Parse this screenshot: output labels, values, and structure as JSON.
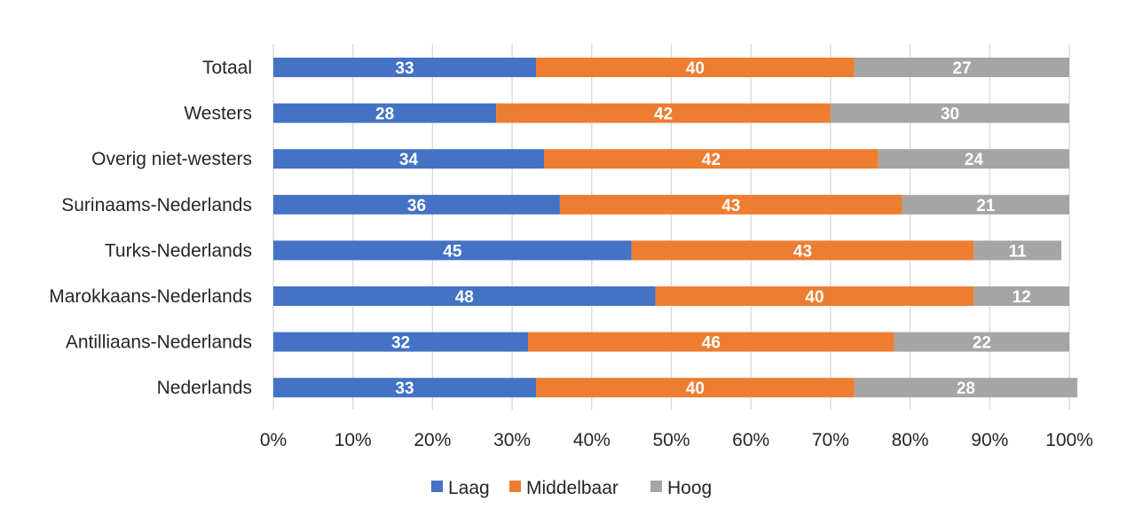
{
  "chart_data": {
    "type": "bar",
    "orientation": "horizontal",
    "stacked": "percent",
    "categories": [
      "Totaal",
      "Westers",
      "Overig niet-westers",
      "Surinaams-Nederlands",
      "Turks-Nederlands",
      "Marokkaans-Nederlands",
      "Antilliaans-Nederlands",
      "Nederlands"
    ],
    "series": [
      {
        "name": "Laag",
        "color": "#4472c4",
        "values": [
          33,
          28,
          34,
          36,
          45,
          48,
          32,
          33
        ]
      },
      {
        "name": "Middelbaar",
        "color": "#ed7d31",
        "values": [
          40,
          42,
          42,
          43,
          43,
          40,
          46,
          40
        ]
      },
      {
        "name": "Hoog",
        "color": "#a5a5a5",
        "values": [
          27,
          30,
          24,
          21,
          11,
          12,
          22,
          28
        ]
      }
    ],
    "xlim": [
      0,
      100
    ],
    "xticks": [
      "0%",
      "10%",
      "20%",
      "30%",
      "40%",
      "50%",
      "60%",
      "70%",
      "80%",
      "90%",
      "100%"
    ],
    "grid": true,
    "legend_position": "bottom",
    "data_labels": true
  }
}
